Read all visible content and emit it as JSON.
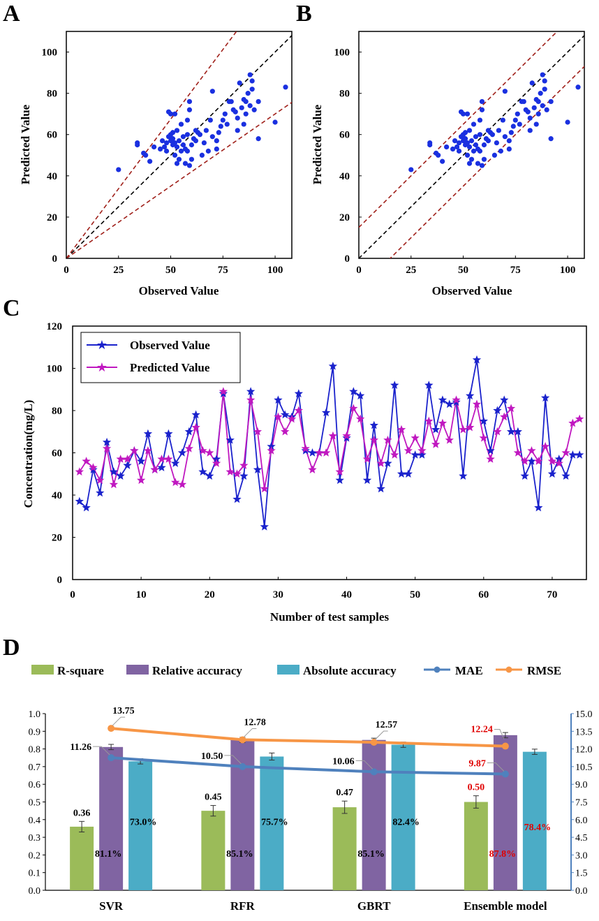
{
  "chart_data": [
    {
      "id": "A",
      "type": "scatter",
      "panel_label": "A",
      "xlabel": "Observed Value",
      "ylabel": "Predicted Value",
      "xlim": [
        0,
        108
      ],
      "ylim": [
        0,
        110
      ],
      "xticks": [
        0,
        25,
        50,
        75,
        100
      ],
      "yticks": [
        0,
        20,
        40,
        60,
        80,
        100
      ],
      "reference_lines": [
        {
          "kind": "identity",
          "color": "#000000",
          "style": "dashed"
        },
        {
          "kind": "slope",
          "slope": 1.35,
          "color": "#a0201a",
          "style": "dashed"
        },
        {
          "kind": "slope",
          "slope": 0.7,
          "color": "#a0201a",
          "style": "dashed"
        }
      ],
      "point_color": "#1a30e0",
      "points": [
        [
          25,
          43
        ],
        [
          34,
          56
        ],
        [
          34,
          55
        ],
        [
          37,
          51
        ],
        [
          38,
          50
        ],
        [
          40,
          47
        ],
        [
          42,
          54
        ],
        [
          45,
          53
        ],
        [
          46,
          57
        ],
        [
          47,
          54
        ],
        [
          48,
          56
        ],
        [
          48,
          52
        ],
        [
          49,
          59
        ],
        [
          49,
          71
        ],
        [
          50,
          70
        ],
        [
          50,
          60
        ],
        [
          50,
          57
        ],
        [
          51,
          55
        ],
        [
          51,
          61
        ],
        [
          51,
          58
        ],
        [
          52,
          56
        ],
        [
          52,
          70
        ],
        [
          52,
          50
        ],
        [
          53,
          46
        ],
        [
          53,
          54
        ],
        [
          53,
          62
        ],
        [
          54,
          57
        ],
        [
          54,
          48
        ],
        [
          55,
          65
        ],
        [
          55,
          52
        ],
        [
          56,
          59
        ],
        [
          56,
          55
        ],
        [
          57,
          53
        ],
        [
          57,
          46
        ],
        [
          58,
          60
        ],
        [
          58,
          67
        ],
        [
          58,
          52
        ],
        [
          59,
          72
        ],
        [
          59,
          76
        ],
        [
          59,
          45
        ],
        [
          60,
          55
        ],
        [
          60,
          48
        ],
        [
          61,
          58
        ],
        [
          62,
          62
        ],
        [
          62,
          57
        ],
        [
          63,
          61
        ],
        [
          64,
          60
        ],
        [
          65,
          50
        ],
        [
          66,
          56
        ],
        [
          67,
          62
        ],
        [
          68,
          52
        ],
        [
          69,
          67
        ],
        [
          70,
          59
        ],
        [
          70,
          81
        ],
        [
          72,
          57
        ],
        [
          72,
          53
        ],
        [
          73,
          61
        ],
        [
          74,
          64
        ],
        [
          75,
          67
        ],
        [
          76,
          70
        ],
        [
          77,
          65
        ],
        [
          78,
          76
        ],
        [
          79,
          76
        ],
        [
          80,
          72
        ],
        [
          81,
          71
        ],
        [
          82,
          68
        ],
        [
          82,
          62
        ],
        [
          83,
          85
        ],
        [
          84,
          73
        ],
        [
          85,
          77
        ],
        [
          85,
          65
        ],
        [
          86,
          70
        ],
        [
          86,
          76
        ],
        [
          87,
          80
        ],
        [
          88,
          89
        ],
        [
          88,
          74
        ],
        [
          89,
          82
        ],
        [
          89,
          86
        ],
        [
          90,
          72
        ],
        [
          92,
          76
        ],
        [
          92,
          58
        ],
        [
          100,
          66
        ],
        [
          105,
          83
        ]
      ]
    },
    {
      "id": "B",
      "type": "scatter",
      "panel_label": "B",
      "xlabel": "Observed Value",
      "ylabel": "Predicted Value",
      "xlim": [
        0,
        108
      ],
      "ylim": [
        0,
        110
      ],
      "xticks": [
        0,
        25,
        50,
        75,
        100
      ],
      "yticks": [
        0,
        20,
        40,
        60,
        80,
        100
      ],
      "reference_lines": [
        {
          "kind": "offset",
          "offset": 0,
          "color": "#000000",
          "style": "dashed"
        },
        {
          "kind": "offset",
          "offset": 15,
          "color": "#a0201a",
          "style": "dashed"
        },
        {
          "kind": "offset",
          "offset": -15,
          "color": "#a0201a",
          "style": "dashed"
        }
      ],
      "point_color": "#1a30e0",
      "points": [
        [
          25,
          43
        ],
        [
          34,
          56
        ],
        [
          34,
          55
        ],
        [
          37,
          51
        ],
        [
          38,
          50
        ],
        [
          40,
          47
        ],
        [
          42,
          54
        ],
        [
          45,
          53
        ],
        [
          46,
          57
        ],
        [
          47,
          54
        ],
        [
          48,
          56
        ],
        [
          48,
          52
        ],
        [
          49,
          59
        ],
        [
          49,
          71
        ],
        [
          50,
          70
        ],
        [
          50,
          60
        ],
        [
          50,
          57
        ],
        [
          51,
          55
        ],
        [
          51,
          61
        ],
        [
          51,
          58
        ],
        [
          52,
          56
        ],
        [
          52,
          70
        ],
        [
          52,
          50
        ],
        [
          53,
          46
        ],
        [
          53,
          54
        ],
        [
          53,
          62
        ],
        [
          54,
          57
        ],
        [
          54,
          48
        ],
        [
          55,
          65
        ],
        [
          55,
          52
        ],
        [
          56,
          59
        ],
        [
          56,
          55
        ],
        [
          57,
          53
        ],
        [
          57,
          46
        ],
        [
          58,
          60
        ],
        [
          58,
          67
        ],
        [
          58,
          52
        ],
        [
          59,
          72
        ],
        [
          59,
          76
        ],
        [
          59,
          45
        ],
        [
          60,
          55
        ],
        [
          60,
          48
        ],
        [
          61,
          58
        ],
        [
          62,
          62
        ],
        [
          62,
          57
        ],
        [
          63,
          61
        ],
        [
          64,
          60
        ],
        [
          65,
          50
        ],
        [
          66,
          56
        ],
        [
          67,
          62
        ],
        [
          68,
          52
        ],
        [
          69,
          67
        ],
        [
          70,
          59
        ],
        [
          70,
          81
        ],
        [
          72,
          57
        ],
        [
          72,
          53
        ],
        [
          73,
          61
        ],
        [
          74,
          64
        ],
        [
          75,
          67
        ],
        [
          76,
          70
        ],
        [
          77,
          65
        ],
        [
          78,
          76
        ],
        [
          79,
          76
        ],
        [
          80,
          72
        ],
        [
          81,
          71
        ],
        [
          82,
          68
        ],
        [
          82,
          62
        ],
        [
          83,
          85
        ],
        [
          84,
          73
        ],
        [
          85,
          77
        ],
        [
          85,
          65
        ],
        [
          86,
          70
        ],
        [
          86,
          76
        ],
        [
          87,
          80
        ],
        [
          88,
          89
        ],
        [
          88,
          74
        ],
        [
          89,
          82
        ],
        [
          89,
          86
        ],
        [
          90,
          72
        ],
        [
          92,
          76
        ],
        [
          92,
          58
        ],
        [
          100,
          66
        ],
        [
          105,
          83
        ]
      ]
    },
    {
      "id": "C",
      "type": "line",
      "panel_label": "C",
      "xlabel": "Number of test samples",
      "ylabel": "Concentration(mg/L)",
      "xlim": [
        0,
        75
      ],
      "ylim": [
        0,
        120
      ],
      "xticks": [
        0,
        10,
        20,
        30,
        40,
        50,
        60,
        70
      ],
      "yticks": [
        0,
        20,
        40,
        60,
        80,
        100,
        120
      ],
      "x": [
        1,
        2,
        3,
        4,
        5,
        6,
        7,
        8,
        9,
        10,
        11,
        12,
        13,
        14,
        15,
        16,
        17,
        18,
        19,
        20,
        21,
        22,
        23,
        24,
        25,
        26,
        27,
        28,
        29,
        30,
        31,
        32,
        33,
        34,
        35,
        36,
        37,
        38,
        39,
        40,
        41,
        42,
        43,
        44,
        45,
        46,
        47,
        48,
        49,
        50,
        51,
        52,
        53,
        54,
        55,
        56,
        57,
        58,
        59,
        60,
        61,
        62,
        63,
        64,
        65,
        66,
        67,
        68,
        69,
        70,
        71,
        72,
        73,
        74
      ],
      "series": [
        {
          "name": "Observed Value",
          "color": "#1a22cc",
          "values": [
            37,
            34,
            52,
            41,
            65,
            51,
            49,
            54,
            61,
            56,
            69,
            52,
            53,
            69,
            55,
            60,
            70,
            78,
            51,
            49,
            57,
            88,
            66,
            38,
            49,
            89,
            52,
            25,
            63,
            85,
            78,
            77,
            88,
            61,
            60,
            60,
            79,
            101,
            47,
            67,
            89,
            87,
            47,
            73,
            43,
            55,
            92,
            50,
            50,
            59,
            59,
            92,
            71,
            85,
            83,
            84,
            49,
            87,
            104,
            75,
            61,
            80,
            85,
            70,
            70,
            49,
            56,
            34,
            86,
            50,
            57,
            49,
            59,
            59
          ]
        },
        {
          "name": "Predicted Value",
          "color": "#c018c0",
          "values": [
            51,
            56,
            53,
            47,
            62,
            45,
            57,
            57,
            61,
            47,
            61,
            52,
            57,
            57,
            46,
            45,
            62,
            72,
            61,
            60,
            55,
            89,
            51,
            50,
            54,
            85,
            70,
            43,
            61,
            77,
            70,
            76,
            80,
            62,
            52,
            60,
            60,
            68,
            51,
            68,
            81,
            76,
            57,
            66,
            55,
            66,
            59,
            71,
            61,
            67,
            61,
            75,
            64,
            74,
            66,
            85,
            71,
            72,
            83,
            67,
            57,
            70,
            77,
            81,
            60,
            56,
            61,
            56,
            63,
            56,
            55,
            60,
            74,
            76
          ]
        }
      ]
    },
    {
      "id": "D",
      "type": "bar",
      "panel_label": "D",
      "categories": [
        "SVR",
        "RFR",
        "GBRT",
        "Ensemble model"
      ],
      "ylim_left": [
        0,
        1.0
      ],
      "ylim_right": [
        0,
        15.0
      ],
      "yticks_left": [
        "0.0",
        "0.1",
        "0.2",
        "0.3",
        "0.4",
        "0.5",
        "0.6",
        "0.7",
        "0.8",
        "0.9",
        "1.0"
      ],
      "yticks_right": [
        "0.0",
        "1.5",
        "3.0",
        "4.5",
        "6.0",
        "7.5",
        "9.0",
        "10.5",
        "12.0",
        "13.5",
        "15.0"
      ],
      "series": [
        {
          "name": "R-square",
          "color": "#9bbb59",
          "values": [
            0.36,
            0.45,
            0.47,
            0.5
          ],
          "errors": [
            0.03,
            0.03,
            0.035,
            0.035
          ],
          "labels": [
            "0.36",
            "0.45",
            "0.47",
            "0.50"
          ]
        },
        {
          "name": "Relative accuracy",
          "color": "#8064a2",
          "values": [
            0.811,
            0.851,
            0.851,
            0.878
          ],
          "errors": [
            0.015,
            0.015,
            0.01,
            0.015
          ],
          "labels": [
            "81.1%",
            "85.1%",
            "85.1%",
            "87.8%"
          ]
        },
        {
          "name": "Absolute accuracy",
          "color": "#4bacc6",
          "values": [
            0.73,
            0.757,
            0.824,
            0.784
          ],
          "errors": [
            0.015,
            0.02,
            0.015,
            0.015
          ],
          "labels": [
            "73.0%",
            "75.7%",
            "82.4%",
            "78.4%"
          ]
        }
      ],
      "lines": [
        {
          "name": "MAE",
          "color": "#4f81bd",
          "axis": "right",
          "values": [
            11.26,
            10.5,
            10.06,
            9.87
          ],
          "labels": [
            "11.26",
            "10.50",
            "10.06",
            "9.87"
          ]
        },
        {
          "name": "RMSE",
          "color": "#f79646",
          "axis": "right",
          "values": [
            13.75,
            12.78,
            12.57,
            12.24
          ],
          "labels": [
            "13.75",
            "12.78",
            "12.57",
            "12.24"
          ]
        }
      ],
      "highlight_color": "#e00000",
      "highlight_category": "Ensemble model"
    }
  ]
}
